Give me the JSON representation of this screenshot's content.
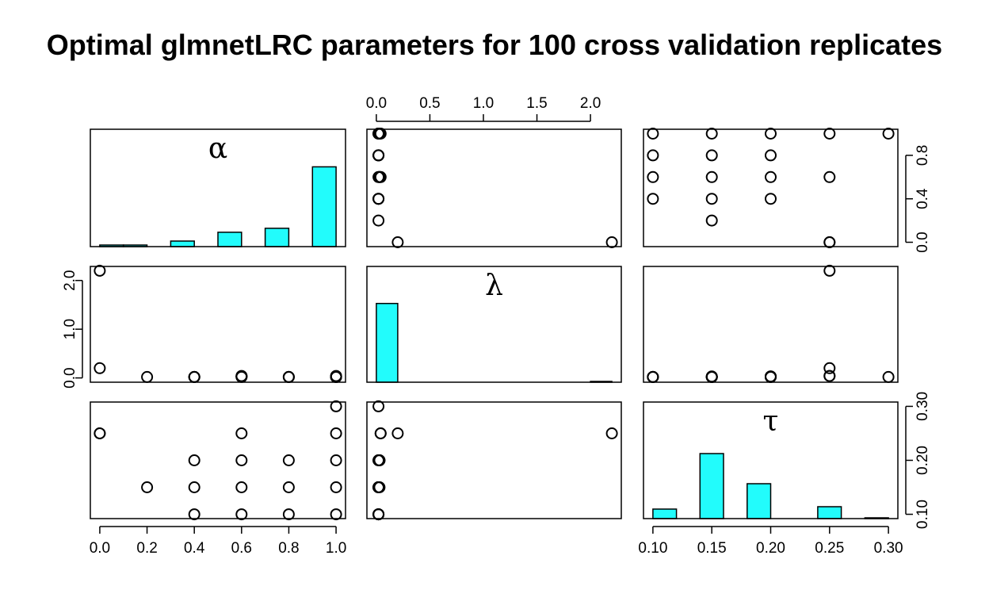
{
  "chart_data": {
    "type": "scatter",
    "subtype": "pairs",
    "title": "Optimal glmnetLRC parameters for 100 cross validation replicates",
    "hist_color": "#22fcfc",
    "variables": [
      {
        "key": "alpha",
        "label": "α",
        "range": [
          0,
          1
        ],
        "ticks": [
          0.0,
          0.2,
          0.4,
          0.6,
          0.8,
          1.0
        ],
        "tick_labels": [
          "0.0",
          "0.2",
          "0.4",
          "0.6",
          "0.8",
          "1.0"
        ]
      },
      {
        "key": "lambda",
        "label": "λ",
        "range": [
          0,
          2.2
        ],
        "ticks": [
          0.0,
          0.5,
          1.0,
          1.5,
          2.0
        ],
        "tick_labels": [
          "0.0",
          "0.5",
          "1.0",
          "1.5",
          "2.0"
        ],
        "tick_labels_row": [
          "0.0",
          "1.0",
          "2.0"
        ],
        "ticks_row": [
          0.0,
          1.0,
          2.0
        ]
      },
      {
        "key": "tau",
        "label": "τ",
        "range": [
          0.1,
          0.3
        ],
        "ticks": [
          0.1,
          0.15,
          0.2,
          0.25,
          0.3
        ],
        "tick_labels": [
          "0.10",
          "0.15",
          "0.20",
          "0.25",
          "0.30"
        ],
        "tick_labels_right": [
          "0.10",
          "0.20",
          "0.30"
        ],
        "ticks_right": [
          0.1,
          0.2,
          0.3
        ],
        "tick_labels_alpha_right": [
          "0.0",
          "0.4",
          "0.8"
        ],
        "ticks_alpha_right": [
          0.0,
          0.4,
          0.8
        ]
      }
    ],
    "points": [
      {
        "alpha": 0.0,
        "lambda": 2.2,
        "tau": 0.25
      },
      {
        "alpha": 0.0,
        "lambda": 0.2,
        "tau": 0.25
      },
      {
        "alpha": 0.2,
        "lambda": 0.02,
        "tau": 0.15
      },
      {
        "alpha": 0.4,
        "lambda": 0.02,
        "tau": 0.1
      },
      {
        "alpha": 0.4,
        "lambda": 0.02,
        "tau": 0.15
      },
      {
        "alpha": 0.4,
        "lambda": 0.02,
        "tau": 0.2
      },
      {
        "alpha": 0.6,
        "lambda": 0.02,
        "tau": 0.1
      },
      {
        "alpha": 0.6,
        "lambda": 0.03,
        "tau": 0.15
      },
      {
        "alpha": 0.6,
        "lambda": 0.03,
        "tau": 0.2
      },
      {
        "alpha": 0.6,
        "lambda": 0.04,
        "tau": 0.25
      },
      {
        "alpha": 0.8,
        "lambda": 0.02,
        "tau": 0.1
      },
      {
        "alpha": 0.8,
        "lambda": 0.02,
        "tau": 0.15
      },
      {
        "alpha": 0.8,
        "lambda": 0.02,
        "tau": 0.2
      },
      {
        "alpha": 1.0,
        "lambda": 0.02,
        "tau": 0.1
      },
      {
        "alpha": 1.0,
        "lambda": 0.02,
        "tau": 0.15
      },
      {
        "alpha": 1.0,
        "lambda": 0.03,
        "tau": 0.2
      },
      {
        "alpha": 1.0,
        "lambda": 0.04,
        "tau": 0.25
      },
      {
        "alpha": 1.0,
        "lambda": 0.02,
        "tau": 0.3
      }
    ],
    "histograms": [
      {
        "var": "alpha",
        "bins": [
          [
            0.0,
            0.1
          ],
          [
            0.1,
            0.2
          ],
          [
            0.3,
            0.4
          ],
          [
            0.5,
            0.6
          ],
          [
            0.7,
            0.8
          ],
          [
            0.9,
            1.0
          ]
        ],
        "heights": [
          0.02,
          0.02,
          0.07,
          0.18,
          0.23,
          1.0
        ]
      },
      {
        "var": "lambda",
        "bins": [
          [
            0.0,
            0.2
          ],
          [
            2.0,
            2.2
          ]
        ],
        "heights": [
          1.0,
          0.01
        ]
      },
      {
        "var": "tau",
        "bins": [
          [
            0.1,
            0.12
          ],
          [
            0.14,
            0.16
          ],
          [
            0.18,
            0.2
          ],
          [
            0.24,
            0.26
          ],
          [
            0.28,
            0.3
          ]
        ],
        "heights": [
          0.12,
          0.82,
          0.44,
          0.15,
          0.01
        ]
      }
    ]
  }
}
